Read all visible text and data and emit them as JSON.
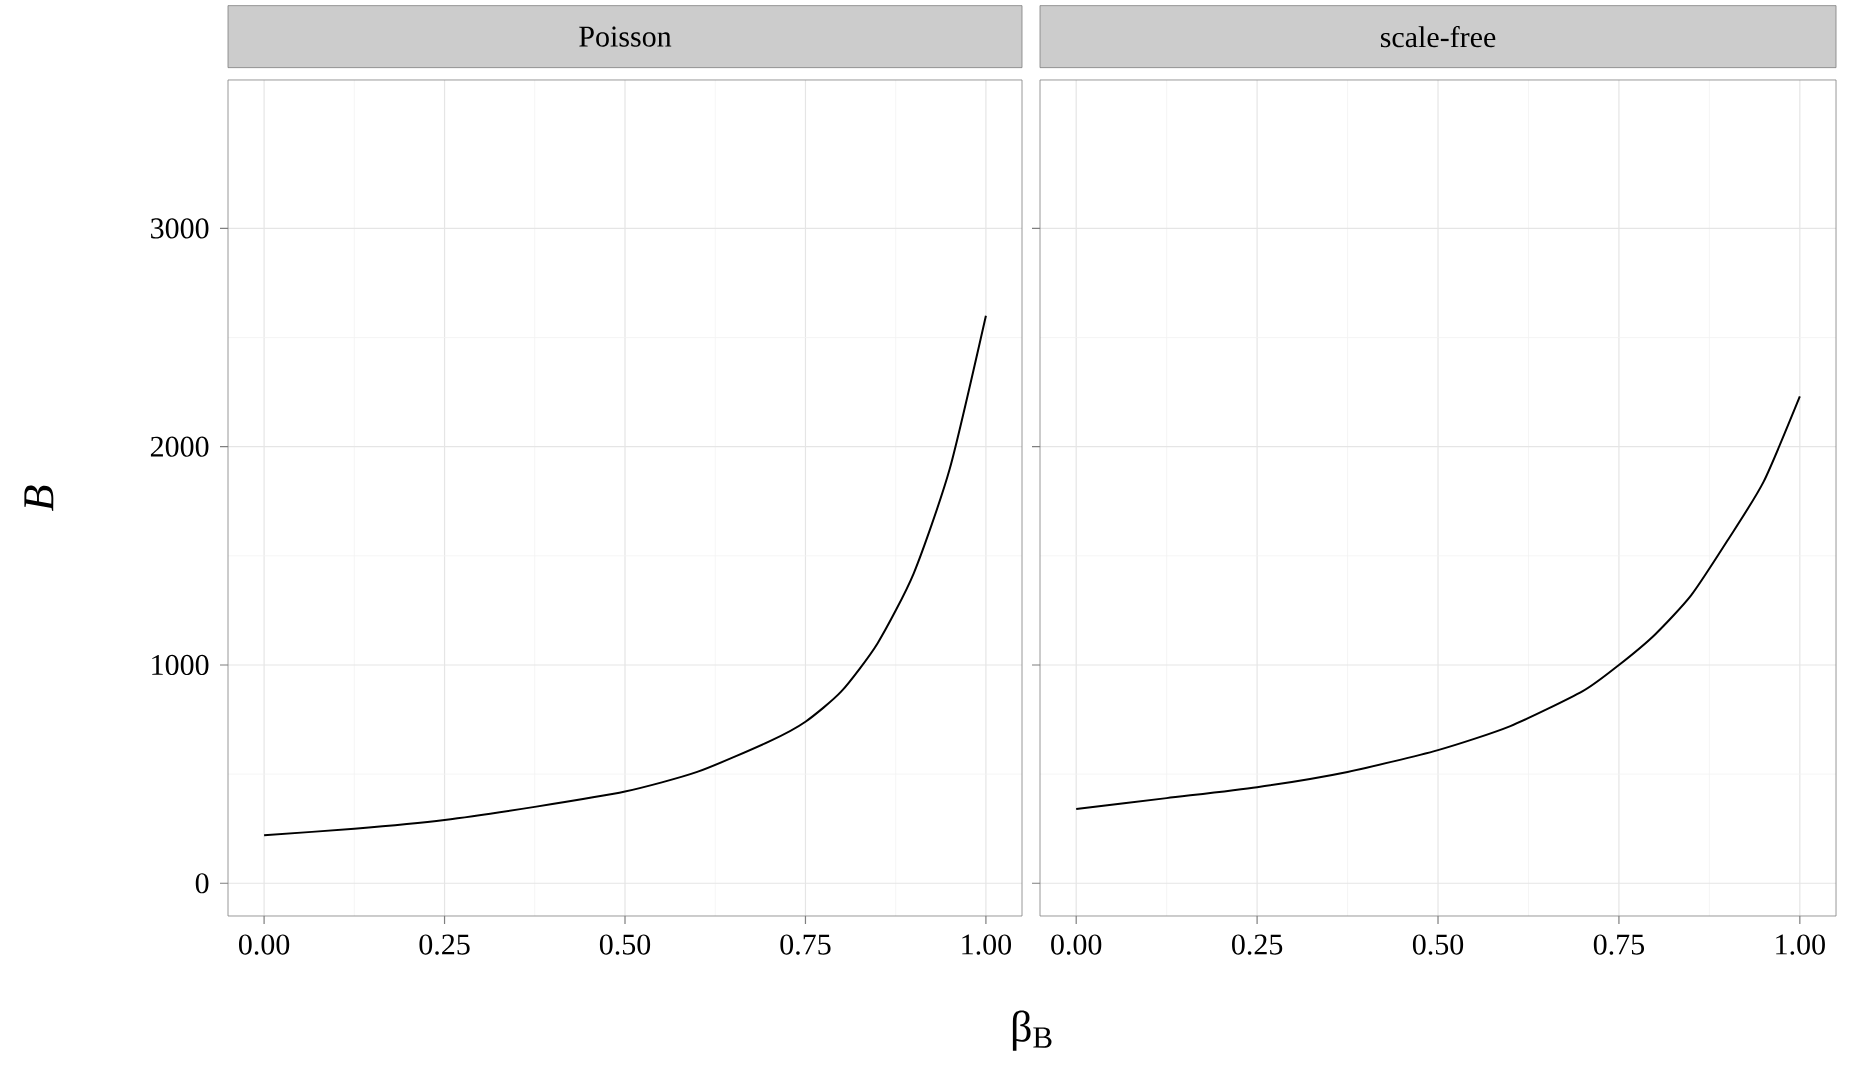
{
  "chart_data": [
    {
      "type": "line",
      "title": "Poisson",
      "xlabel": "β$_{B}$",
      "ylabel": "B",
      "tick_labels": "xy",
      "grid": true,
      "line_style": "solid",
      "xlim": [
        -0.05,
        1.05
      ],
      "ylim": [
        -150,
        3680
      ],
      "xticks": [
        {
          "value": 0,
          "label": "0.00"
        },
        {
          "value": 0.25,
          "label": "0.25"
        },
        {
          "value": 0.5,
          "label": "0.50"
        },
        {
          "value": 0.75,
          "label": "0.75"
        },
        {
          "value": 1,
          "label": "1.00"
        }
      ],
      "yticks": [
        0,
        1000,
        2000,
        3000
      ],
      "series": [
        {
          "color": "#000000",
          "x": [
            0,
            0.125,
            0.25,
            0.375,
            0.5,
            0.6,
            0.7,
            0.75,
            0.8,
            0.85,
            0.9,
            0.95,
            1.0
          ],
          "values": [
            220,
            250,
            290,
            350,
            420,
            510,
            650,
            740,
            880,
            1100,
            1420,
            1900,
            2600
          ]
        }
      ]
    },
    {
      "type": "line",
      "title": "scale-free",
      "tick_labels": "x",
      "grid": true,
      "line_style": "solid",
      "xlim": [
        -0.05,
        1.05
      ],
      "ylim": [
        -150,
        3680
      ],
      "xticks": [
        {
          "value": 0,
          "label": "0.00"
        },
        {
          "value": 0.25,
          "label": "0.25"
        },
        {
          "value": 0.5,
          "label": "0.50"
        },
        {
          "value": 0.75,
          "label": "0.75"
        },
        {
          "value": 1,
          "label": "1.00"
        }
      ],
      "yticks": [
        0,
        1000,
        2000,
        3000
      ],
      "series": [
        {
          "color": "#000000",
          "x": [
            0,
            0.125,
            0.25,
            0.375,
            0.5,
            0.6,
            0.7,
            0.75,
            0.8,
            0.85,
            0.9,
            0.95,
            1.0
          ],
          "values": [
            340,
            390,
            440,
            510,
            610,
            720,
            880,
            1000,
            1140,
            1320,
            1570,
            1840,
            2230
          ]
        }
      ]
    }
  ]
}
